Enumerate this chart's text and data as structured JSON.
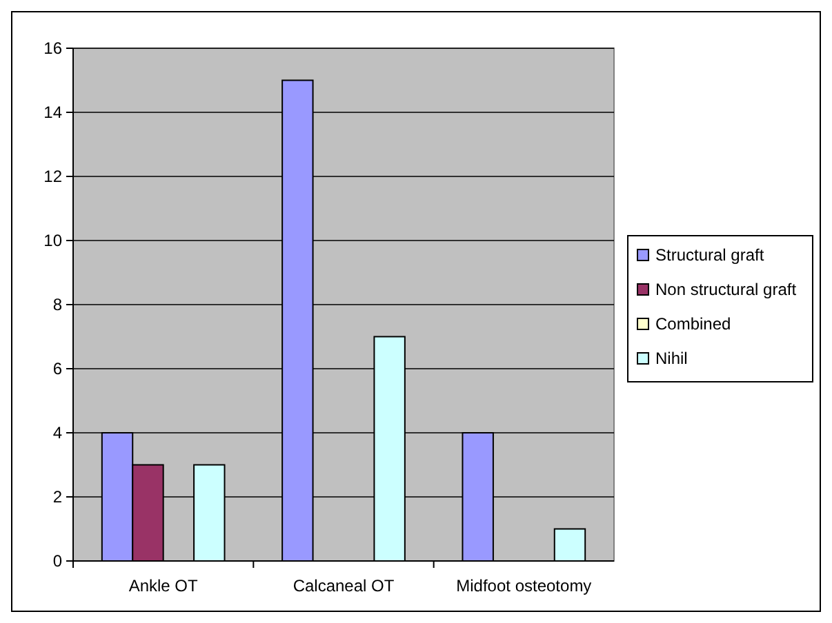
{
  "chart_data": {
    "type": "bar",
    "categories": [
      "Ankle OT",
      "Calcaneal OT",
      "Midfoot osteotomy"
    ],
    "series": [
      {
        "name": "Structural graft",
        "color": "#9999ff",
        "values": [
          4,
          15,
          4
        ]
      },
      {
        "name": "Non structural graft",
        "color": "#993366",
        "values": [
          3,
          0,
          0
        ]
      },
      {
        "name": "Combined",
        "color": "#ffffcc",
        "values": [
          0,
          0,
          0
        ]
      },
      {
        "name": "Nihil",
        "color": "#ccffff",
        "values": [
          3,
          7,
          1
        ]
      }
    ],
    "ylim": [
      0,
      16
    ],
    "yticks": [
      0,
      2,
      4,
      6,
      8,
      10,
      12,
      14,
      16
    ],
    "grid": "y",
    "legend": "right"
  }
}
